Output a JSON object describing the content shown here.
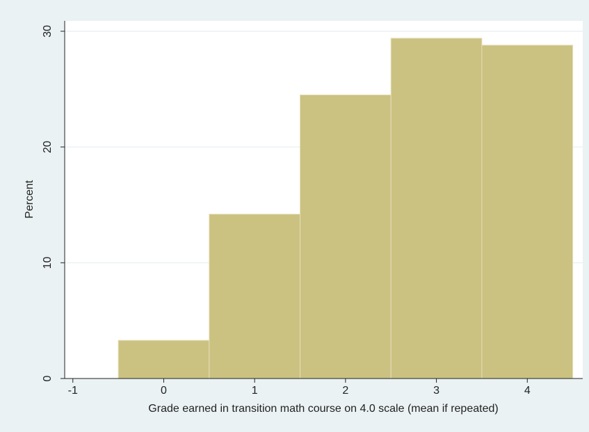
{
  "chart_data": {
    "type": "histogram",
    "x_label": "Grade earned in transition math course on 4.0 scale (mean if repeated)",
    "y_label": "Percent",
    "bins": [
      -0.5,
      0.5,
      1.5,
      2.5,
      3.5,
      4.5
    ],
    "values": [
      3.3,
      14.2,
      24.5,
      29.4,
      28.8
    ],
    "color": "#cbc181",
    "edge_color": "#e6dfb8",
    "xlim": [
      -1.09,
      4.61
    ],
    "xticks": [
      -1,
      0,
      1,
      2,
      3,
      4
    ],
    "ylim": [
      0,
      30.9
    ],
    "yticks": [
      0,
      10,
      20,
      30
    ],
    "grid": true
  }
}
